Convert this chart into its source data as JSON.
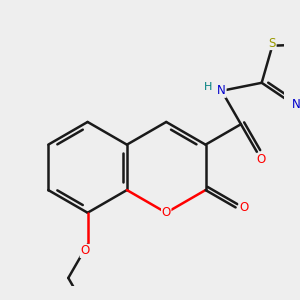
{
  "bg_color": "#eeeeee",
  "bond_color": "#1a1a1a",
  "bond_width": 1.8,
  "atom_colors": {
    "O": "#ff0000",
    "N": "#0000cc",
    "S": "#999900",
    "H": "#008080",
    "C": "#1a1a1a"
  },
  "figsize": [
    3.0,
    3.0
  ],
  "dpi": 100
}
